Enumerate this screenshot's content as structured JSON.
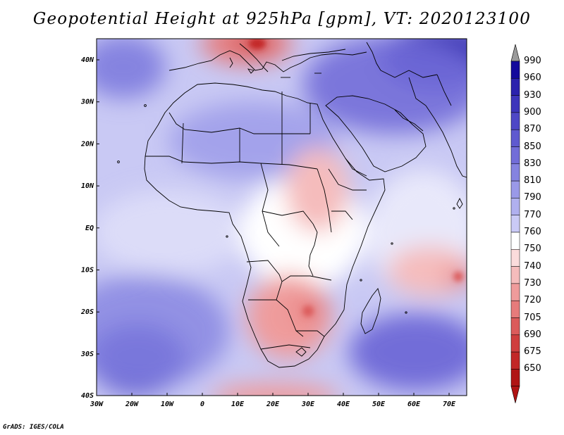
{
  "title": "Geopotential Height at 925hPa [gpm], VT: 2020123100",
  "credit": "GrADS: IGES/COLA",
  "axes": {
    "y_labels": [
      "40N",
      "30N",
      "20N",
      "10N",
      "EQ",
      "10S",
      "20S",
      "30S",
      "40S"
    ],
    "x_labels": [
      "30W",
      "20W",
      "10W",
      "0",
      "10E",
      "20E",
      "30E",
      "40E",
      "50E",
      "60E",
      "70E"
    ]
  },
  "colorbar": {
    "levels": [
      "990",
      "960",
      "930",
      "900",
      "870",
      "850",
      "830",
      "810",
      "790",
      "770",
      "760",
      "750",
      "740",
      "730",
      "720",
      "705",
      "690",
      "675",
      "650"
    ],
    "colors": [
      "#140a9c",
      "#2b22ad",
      "#3d35bb",
      "#4e47c6",
      "#5f5acf",
      "#726dd8",
      "#8583e0",
      "#9a99e8",
      "#b0b0ef",
      "#cacaf6",
      "#ffffff",
      "#fbdcdc",
      "#f5bcbc",
      "#ef9b9b",
      "#e67b7b",
      "#db5b5b",
      "#cf3e3e",
      "#c22727",
      "#b01414"
    ],
    "top_arrow_color": "#9a9a9a",
    "bottom_arrow_color": "#b01414"
  },
  "map": {
    "background_color": "#c9c9f4",
    "coast_color": "#000000"
  }
}
